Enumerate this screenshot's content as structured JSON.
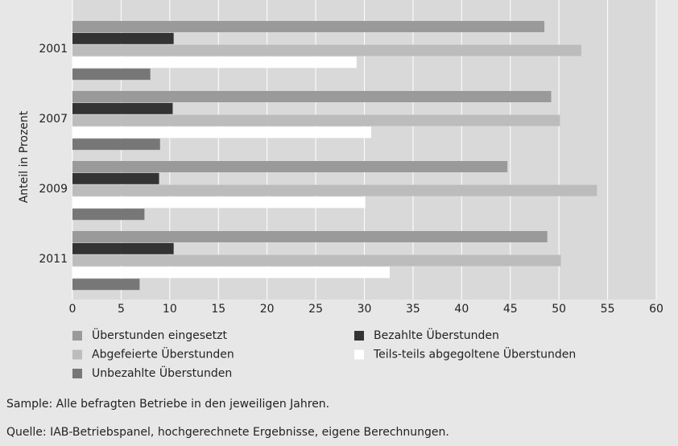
{
  "chart_data": {
    "type": "hbar",
    "y_label": "Anteil in Prozent",
    "categories": [
      "2001",
      "2007",
      "2009",
      "2011"
    ],
    "series": [
      {
        "name": "Überstunden eingesetzt",
        "color": "#9a9a9a",
        "values": [
          48.5,
          49.2,
          44.7,
          48.8
        ]
      },
      {
        "name": "Bezahlte Überstunden",
        "color": "#333333",
        "values": [
          10.4,
          10.3,
          8.9,
          10.4
        ]
      },
      {
        "name": "Abgefeierte Überstunden",
        "color": "#bcbcbc",
        "values": [
          52.3,
          50.1,
          53.9,
          50.2
        ]
      },
      {
        "name": "Teils-teils abgegoltene Überstunden",
        "color": "#ffffff",
        "values": [
          29.2,
          30.7,
          30.1,
          32.6
        ]
      },
      {
        "name": "Unbezahlte Überstunden",
        "color": "#777777",
        "values": [
          8.0,
          9.0,
          7.4,
          6.9
        ]
      }
    ],
    "xlim": [
      0,
      60
    ],
    "xticks": [
      0,
      5,
      10,
      15,
      20,
      25,
      30,
      35,
      40,
      45,
      50,
      55,
      60
    ],
    "grid": true,
    "legend": "bottom",
    "notes": [
      "Sample: Alle befragten Betriebe in den jeweiligen Jahren.",
      "Quelle: IAB-Betriebspanel, hochgerechnete Ergebnisse, eigene Berechnungen."
    ]
  }
}
